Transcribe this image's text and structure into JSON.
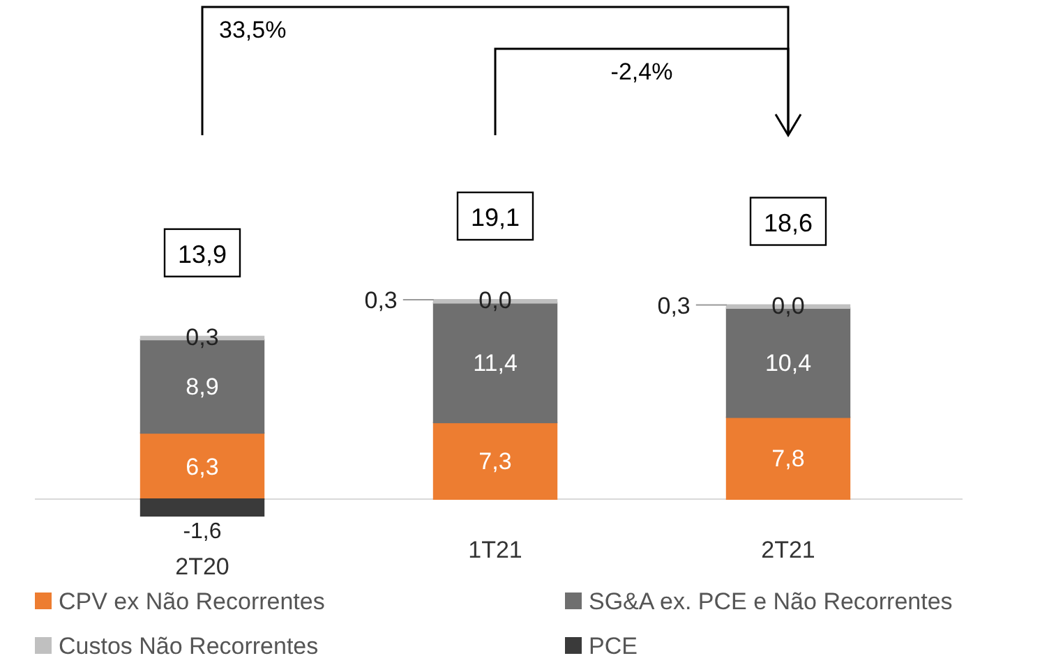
{
  "chart_data": {
    "type": "bar",
    "stacked": true,
    "categories": [
      "2T20",
      "1T21",
      "2T21"
    ],
    "series": [
      {
        "name": "CPV ex Não Recorrentes",
        "color": "#ed7d31",
        "values": [
          6.3,
          7.3,
          7.8
        ],
        "value_labels": [
          "6,3",
          "7,3",
          "7,8"
        ]
      },
      {
        "name": "SG&A ex. PCE e Não Recorrentes",
        "color": "#6f6f6f",
        "values": [
          8.9,
          11.4,
          10.4
        ],
        "value_labels": [
          "8,9",
          "11,4",
          "10,4"
        ]
      },
      {
        "name": "Custos Não Recorrentes",
        "color": "#c0c0c0",
        "values": [
          0.3,
          0.3,
          0.3
        ],
        "value_labels": [
          "0,3",
          "0,3",
          "0,3"
        ]
      },
      {
        "name": "PCE",
        "color": "#3a3a3a",
        "values": [
          -1.6,
          0.0,
          0.0
        ],
        "value_labels": [
          "-1,6",
          "0,0",
          "0,0"
        ]
      }
    ],
    "totals": [
      "13,9",
      "19,1",
      "18,6"
    ],
    "annotations": [
      "33,5%",
      "-2,4%"
    ],
    "legend": "bottom"
  }
}
